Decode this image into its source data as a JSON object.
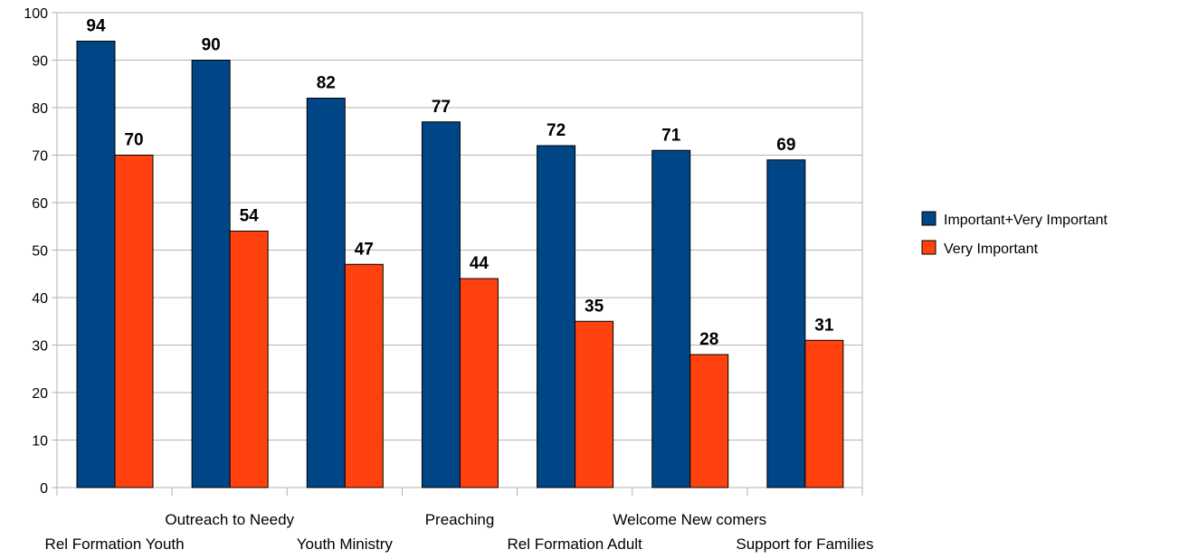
{
  "chart_data": {
    "type": "bar",
    "title": "",
    "xlabel": "",
    "ylabel": "",
    "ylim": [
      0,
      100
    ],
    "yticks": [
      0,
      10,
      20,
      30,
      40,
      50,
      60,
      70,
      80,
      90,
      100
    ],
    "grid": true,
    "legend_position": "right",
    "categories": [
      "Rel Formation Youth",
      "Outreach to Needy",
      "Youth Ministry",
      "Preaching",
      "Rel Formation Adult",
      "Welcome New comers",
      "Support for Families"
    ],
    "series": [
      {
        "name": "Important+Very Important",
        "color": "#004586",
        "values": [
          94,
          90,
          82,
          77,
          72,
          71,
          69
        ]
      },
      {
        "name": "Very Important",
        "color": "#ff420e",
        "values": [
          70,
          54,
          47,
          44,
          35,
          28,
          31
        ]
      }
    ]
  }
}
